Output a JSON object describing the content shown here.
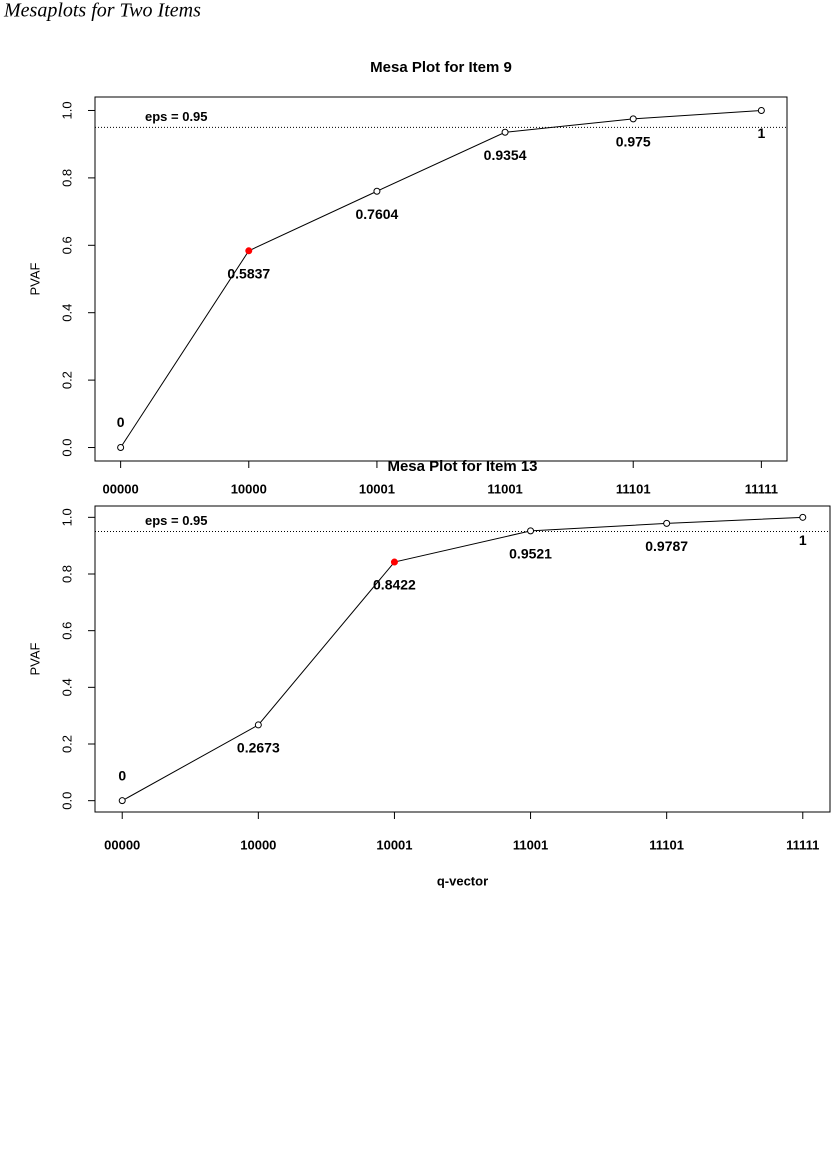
{
  "caption": "Mesaplots for Two Items",
  "chart_data": [
    {
      "type": "line",
      "title": "Mesa Plot for Item 9",
      "y_label": "PVAF",
      "categories": [
        "00000",
        "10000",
        "10001",
        "11001",
        "11101",
        "11111"
      ],
      "values": [
        0,
        0.5837,
        0.7604,
        0.9354,
        0.975,
        1
      ],
      "color": "#000000",
      "highlight_index": 1,
      "highlight_color": "#ff0000",
      "eps": 0.95,
      "eps_label": "eps = 0.95",
      "ylim": [
        -0.04,
        1.04
      ],
      "yticks": [
        {
          "value": 0,
          "label": "0.0"
        },
        {
          "value": 0.2,
          "label": "0.2"
        },
        {
          "value": 0.4,
          "label": "0.4"
        },
        {
          "value": 0.6,
          "label": "0.6"
        },
        {
          "value": 0.8,
          "label": "0.8"
        },
        {
          "value": 1,
          "label": "1.0"
        }
      ]
    },
    {
      "type": "line",
      "title": "Mesa Plot for Item 13",
      "y_label": "PVAF",
      "x_label": "q-vector",
      "categories": [
        "00000",
        "10000",
        "10001",
        "11001",
        "11101",
        "11111"
      ],
      "values": [
        0,
        0.2673,
        0.8422,
        0.9521,
        0.9787,
        1
      ],
      "color": "#000000",
      "highlight_index": 2,
      "highlight_color": "#ff0000",
      "eps": 0.95,
      "eps_label": "eps = 0.95",
      "ylim": [
        -0.04,
        1.04
      ],
      "yticks": [
        {
          "value": 0,
          "label": "0.0"
        },
        {
          "value": 0.2,
          "label": "0.2"
        },
        {
          "value": 0.4,
          "label": "0.4"
        },
        {
          "value": 0.6,
          "label": "0.6"
        },
        {
          "value": 0.8,
          "label": "0.8"
        },
        {
          "value": 1,
          "label": "1.0"
        }
      ]
    }
  ]
}
